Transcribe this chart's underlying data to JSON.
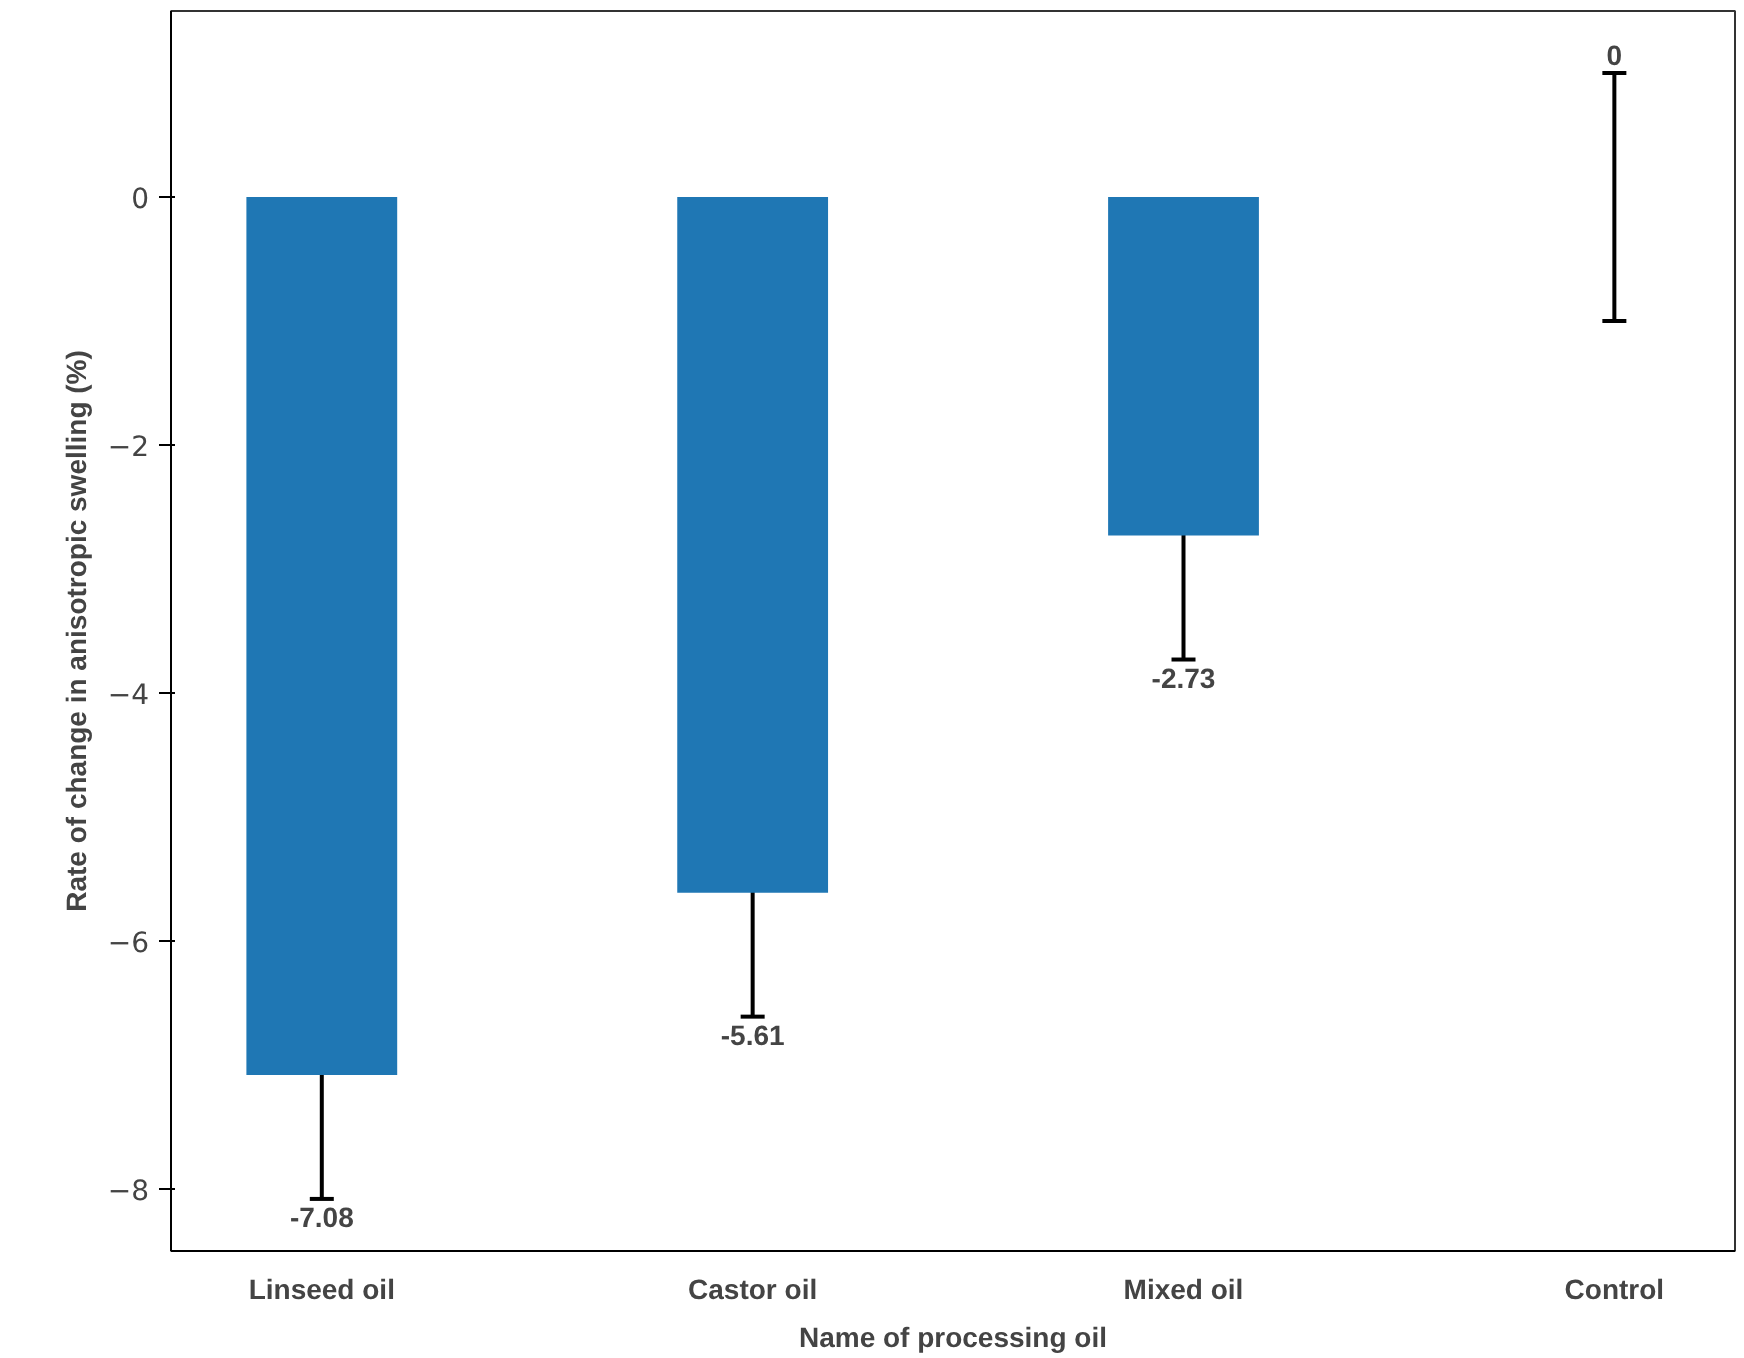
{
  "chart_data": {
    "type": "bar",
    "xlabel": "Name of processing oil",
    "ylabel": "Rate of change in anisotropic swelling (%)",
    "categories": [
      "Linseed oil",
      "Castor oil",
      "Mixed oil",
      "Control"
    ],
    "values": [
      -7.08,
      -5.61,
      -2.73,
      0
    ],
    "errors": [
      1,
      1,
      1,
      1
    ],
    "color": "#1f77b4",
    "ylim": [
      -8.5,
      1.5
    ],
    "yticks": [
      {
        "value": -8,
        "label": "−8"
      },
      {
        "value": -6,
        "label": "−6"
      },
      {
        "value": -4,
        "label": "−4"
      },
      {
        "value": -2,
        "label": "−2"
      },
      0
    ],
    "annotations": [
      {
        "text": "-7.08",
        "x": "Linseed oil",
        "y": -8.08
      },
      {
        "text": "-5.61",
        "x": "Castor oil",
        "y": -6.61
      },
      {
        "text": "-2.73",
        "x": "Mixed oil",
        "y": -3.73
      },
      {
        "text": "0",
        "x": "Control",
        "y": 1
      }
    ],
    "grid": false
  }
}
